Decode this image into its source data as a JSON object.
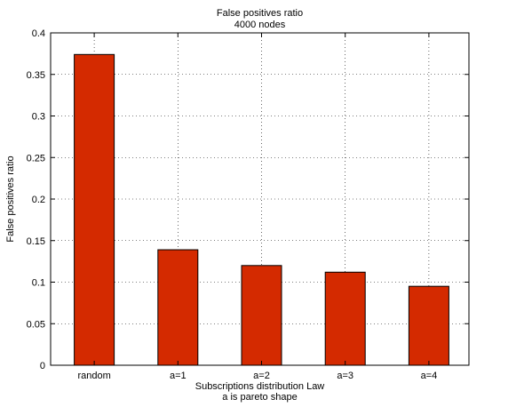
{
  "chart_data": {
    "type": "bar",
    "title": "False positives ratio",
    "subtitle": "4000 nodes",
    "xlabel": "Subscriptions distribution Law",
    "xlabel2": "a is pareto shape",
    "ylabel": "False positives ratio",
    "categories": [
      "random",
      "a=1",
      "a=2",
      "a=3",
      "a=4"
    ],
    "values": [
      0.374,
      0.139,
      0.12,
      0.112,
      0.095
    ],
    "ylim": [
      0,
      0.4
    ],
    "yticks": [
      "0",
      "0.05",
      "0.1",
      "0.15",
      "0.2",
      "0.25",
      "0.3",
      "0.35",
      "0.4"
    ],
    "grid": true,
    "bar_color": "#d42a00"
  }
}
